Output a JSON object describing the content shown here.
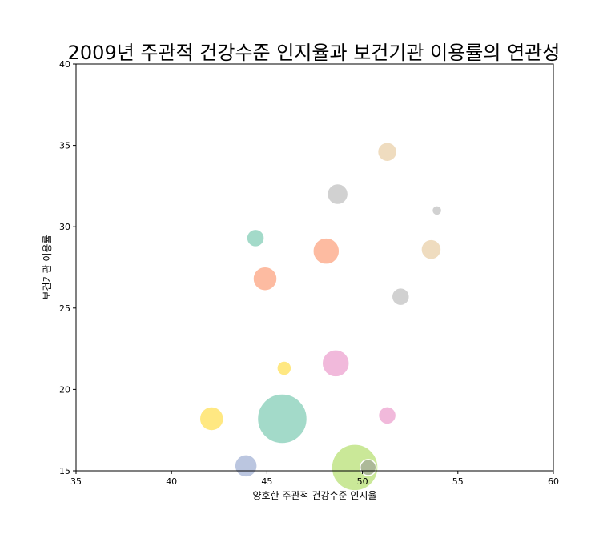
{
  "chart_data": {
    "type": "scatter",
    "title": "2009년 주관적 건강수준 인지율과 보건기관 이용률의 연관성",
    "xlabel": "양호한 주관적 건강수준 인지율",
    "ylabel": "보건기관 이용률",
    "xlim": [
      35,
      60
    ],
    "ylim": [
      15,
      40
    ],
    "xticks": [
      "35",
      "40",
      "45",
      "50",
      "55",
      "60"
    ],
    "yticks": [
      "15",
      "20",
      "25",
      "30",
      "35",
      "40"
    ],
    "grid": false,
    "points": [
      {
        "x": 51.3,
        "y": 34.6,
        "size": 24,
        "color": "#e5c494"
      },
      {
        "x": 48.7,
        "y": 32.0,
        "size": 26,
        "color": "#b3b3b3"
      },
      {
        "x": 53.9,
        "y": 31.0,
        "size": 12,
        "color": "#b3b3b3"
      },
      {
        "x": 44.4,
        "y": 29.3,
        "size": 22,
        "color": "#66c2a5"
      },
      {
        "x": 48.1,
        "y": 28.5,
        "size": 33,
        "color": "#fc8d62"
      },
      {
        "x": 53.6,
        "y": 28.6,
        "size": 25,
        "color": "#e5c494"
      },
      {
        "x": 44.9,
        "y": 26.8,
        "size": 30,
        "color": "#fc8d62"
      },
      {
        "x": 52.0,
        "y": 25.7,
        "size": 22,
        "color": "#b3b3b3"
      },
      {
        "x": 48.6,
        "y": 21.6,
        "size": 34,
        "color": "#e78ac3"
      },
      {
        "x": 45.9,
        "y": 21.3,
        "size": 18,
        "color": "#ffd92f"
      },
      {
        "x": 51.3,
        "y": 18.4,
        "size": 22,
        "color": "#e78ac3"
      },
      {
        "x": 42.1,
        "y": 18.2,
        "size": 30,
        "color": "#ffd92f"
      },
      {
        "x": 45.8,
        "y": 18.2,
        "size": 62,
        "color": "#66c2a5"
      },
      {
        "x": 43.9,
        "y": 15.3,
        "size": 28,
        "color": "#8da0cb"
      },
      {
        "x": 49.6,
        "y": 15.2,
        "size": 58,
        "color": "#a6d854"
      },
      {
        "x": 50.3,
        "y": 15.2,
        "size": 20,
        "color": "#999999"
      }
    ]
  }
}
